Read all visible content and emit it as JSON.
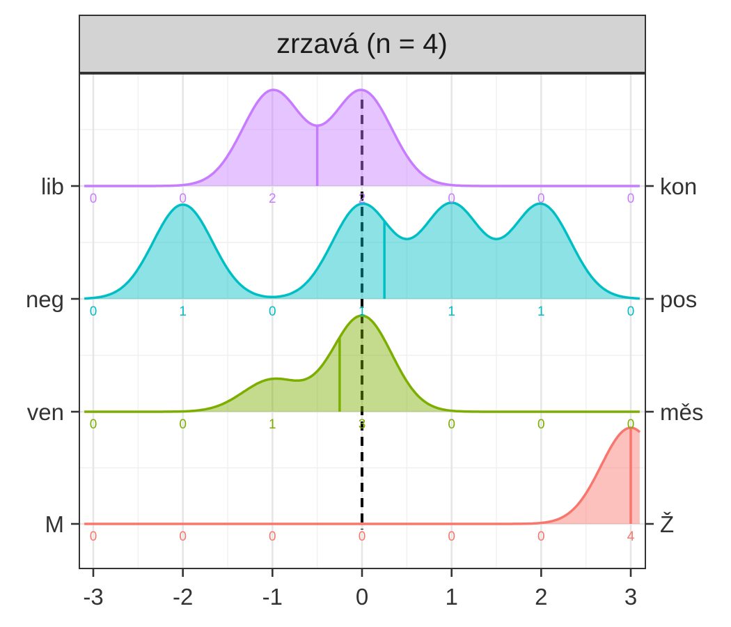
{
  "chart_data": {
    "type": "ridgeline",
    "title": "zrzavá (n = 4)",
    "xlabel": "",
    "ylabel": "",
    "xlim": [
      -3.1,
      3.1
    ],
    "x_ticks": [
      "-3",
      "-2",
      "-1",
      "0",
      "1",
      "2",
      "3"
    ],
    "reference_line_x": 0,
    "count_positions": [
      -3,
      -2,
      -1,
      0,
      1,
      2,
      3
    ],
    "grid": true,
    "rows": [
      {
        "left_label": "lib",
        "right_label": "kon",
        "color": "#C77CFF",
        "counts": [
          "0",
          "0",
          "2",
          "2",
          "0",
          "0",
          "0"
        ],
        "mean": -0.5
      },
      {
        "left_label": "neg",
        "right_label": "pos",
        "color": "#00BFC4",
        "counts": [
          "0",
          "1",
          "0",
          "1",
          "1",
          "1",
          "0"
        ],
        "mean": 0.25
      },
      {
        "left_label": "ven",
        "right_label": "měs",
        "color": "#7CAE00",
        "counts": [
          "0",
          "0",
          "1",
          "3",
          "0",
          "0",
          "0"
        ],
        "mean": -0.25
      },
      {
        "left_label": "M",
        "right_label": "Ž",
        "color": "#F8766D",
        "counts": [
          "0",
          "0",
          "0",
          "0",
          "0",
          "0",
          "4"
        ],
        "mean": 3
      }
    ]
  }
}
